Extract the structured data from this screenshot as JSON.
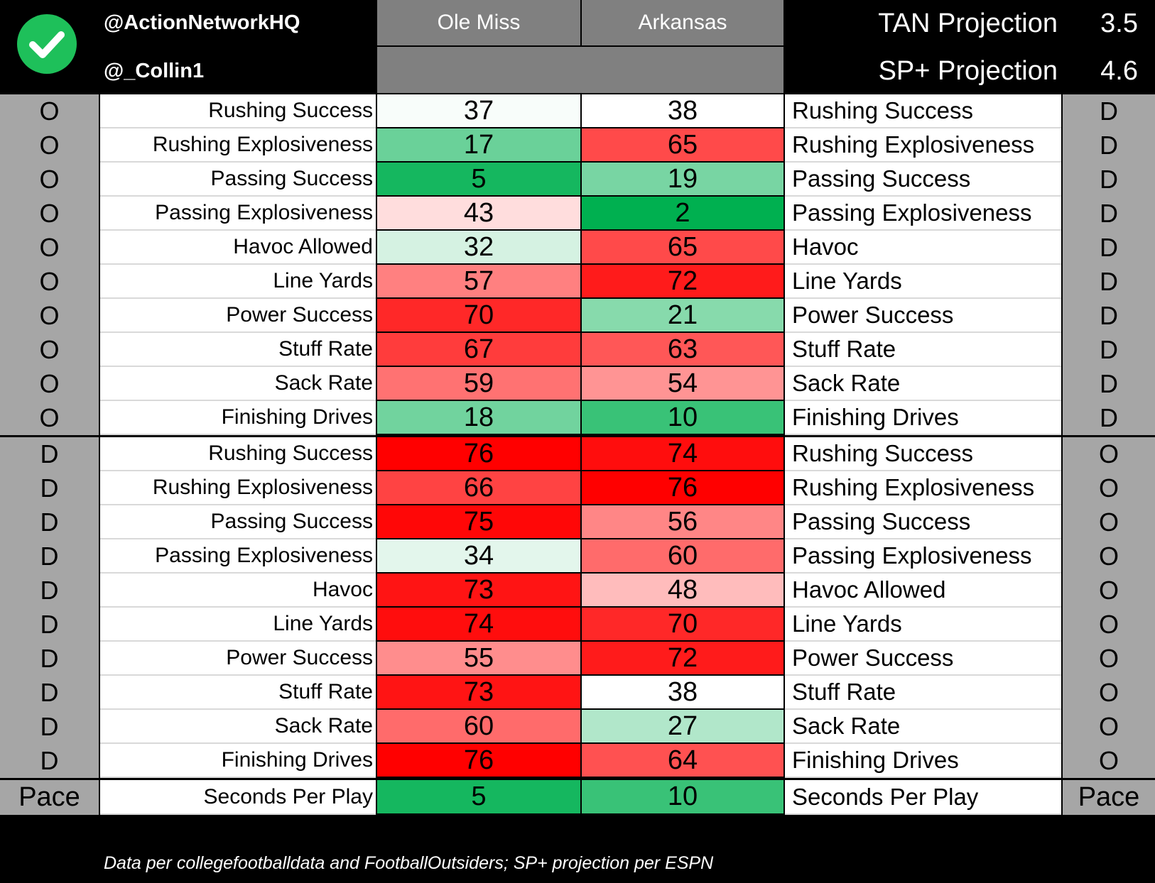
{
  "header": {
    "handle_primary": "@ActionNetworkHQ",
    "handle_secondary": "@_Collin1",
    "logo_icon": "checkmark-icon",
    "team_left": "Ole Miss",
    "team_right": "Arkansas",
    "projections": [
      {
        "label": "TAN Projection",
        "value": "3.5"
      },
      {
        "label": "SP+ Projection",
        "value": "4.6"
      }
    ]
  },
  "colors": {
    "best": "#00b050",
    "neutral": "#ffffff",
    "worst": "#ff0000",
    "side_column": "#a6a6a6",
    "team_header": "#808080"
  },
  "sections": [
    {
      "left_side": "O",
      "right_side": "D",
      "rows": [
        {
          "left_metric": "Rushing Success",
          "v1": 37,
          "v2": 38,
          "right_metric": "Rushing Success"
        },
        {
          "left_metric": "Rushing Explosiveness",
          "v1": 17,
          "v2": 65,
          "right_metric": "Rushing Explosiveness"
        },
        {
          "left_metric": "Passing Success",
          "v1": 5,
          "v2": 19,
          "right_metric": "Passing Success"
        },
        {
          "left_metric": "Passing Explosiveness",
          "v1": 43,
          "v2": 2,
          "right_metric": "Passing Explosiveness"
        },
        {
          "left_metric": "Havoc Allowed",
          "v1": 32,
          "v2": 65,
          "right_metric": "Havoc"
        },
        {
          "left_metric": "Line Yards",
          "v1": 57,
          "v2": 72,
          "right_metric": "Line Yards"
        },
        {
          "left_metric": "Power Success",
          "v1": 70,
          "v2": 21,
          "right_metric": "Power Success"
        },
        {
          "left_metric": "Stuff Rate",
          "v1": 67,
          "v2": 63,
          "right_metric": "Stuff Rate"
        },
        {
          "left_metric": "Sack Rate",
          "v1": 59,
          "v2": 54,
          "right_metric": "Sack Rate"
        },
        {
          "left_metric": "Finishing Drives",
          "v1": 18,
          "v2": 10,
          "right_metric": "Finishing Drives"
        }
      ]
    },
    {
      "left_side": "D",
      "right_side": "O",
      "rows": [
        {
          "left_metric": "Rushing Success",
          "v1": 76,
          "v2": 74,
          "right_metric": "Rushing Success"
        },
        {
          "left_metric": "Rushing Explosiveness",
          "v1": 66,
          "v2": 76,
          "right_metric": "Rushing Explosiveness"
        },
        {
          "left_metric": "Passing Success",
          "v1": 75,
          "v2": 56,
          "right_metric": "Passing Success"
        },
        {
          "left_metric": "Passing Explosiveness",
          "v1": 34,
          "v2": 60,
          "right_metric": "Passing Explosiveness"
        },
        {
          "left_metric": "Havoc",
          "v1": 73,
          "v2": 48,
          "right_metric": "Havoc Allowed"
        },
        {
          "left_metric": "Line Yards",
          "v1": 74,
          "v2": 70,
          "right_metric": "Line Yards"
        },
        {
          "left_metric": "Power Success",
          "v1": 55,
          "v2": 72,
          "right_metric": "Power Success"
        },
        {
          "left_metric": "Stuff Rate",
          "v1": 73,
          "v2": 38,
          "right_metric": "Stuff Rate"
        },
        {
          "left_metric": "Sack Rate",
          "v1": 60,
          "v2": 27,
          "right_metric": "Sack Rate"
        },
        {
          "left_metric": "Finishing Drives",
          "v1": 76,
          "v2": 64,
          "right_metric": "Finishing Drives"
        }
      ]
    },
    {
      "left_side": "Pace",
      "right_side": "Pace",
      "rows": [
        {
          "left_metric": "Seconds Per Play",
          "v1": 5,
          "v2": 10,
          "right_metric": "Seconds Per Play"
        }
      ]
    }
  ],
  "footer": {
    "note": "Data per collegefootballdata and FootballOutsiders; SP+ projection per ESPN"
  }
}
